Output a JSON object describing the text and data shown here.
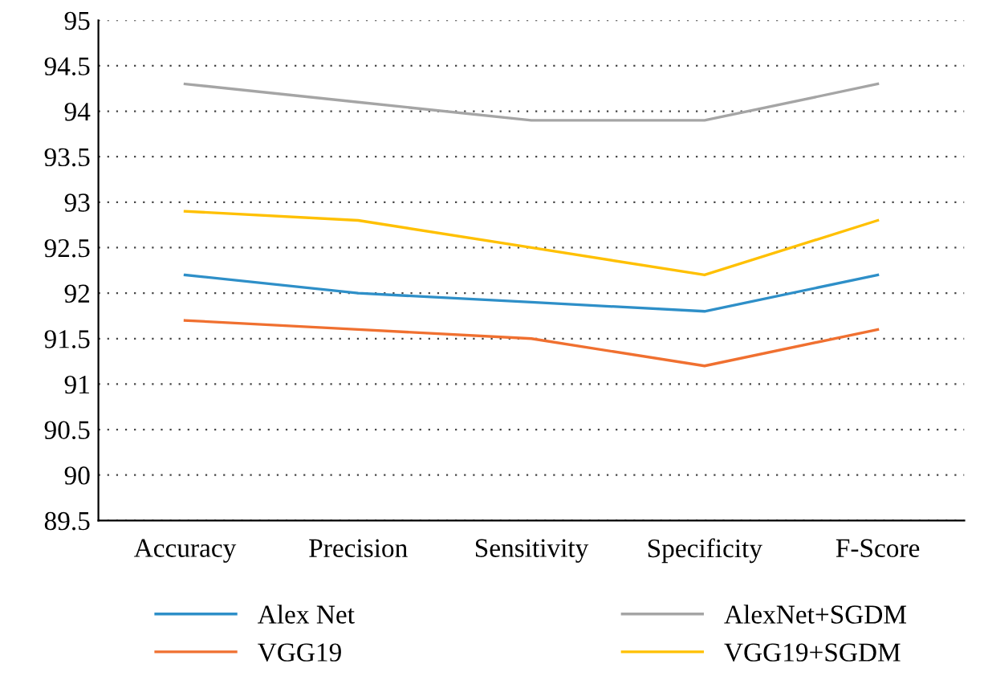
{
  "chart_data": {
    "type": "line",
    "categories": [
      "Accuracy",
      "Precision",
      "Sensitivity",
      "Specificity",
      "F-Score"
    ],
    "series": [
      {
        "name": "Alex Net",
        "color": "#2e8fc8",
        "values": [
          92.2,
          92.0,
          91.9,
          91.8,
          92.2
        ]
      },
      {
        "name": "VGG19",
        "color": "#f07030",
        "values": [
          91.7,
          91.6,
          91.5,
          91.2,
          91.6
        ]
      },
      {
        "name": "AlexNet+SGDM",
        "color": "#a5a5a5",
        "values": [
          94.3,
          94.1,
          93.9,
          93.9,
          94.3
        ]
      },
      {
        "name": "VGG19+SGDM",
        "color": "#ffc000",
        "values": [
          92.9,
          92.8,
          92.5,
          92.2,
          92.8
        ]
      }
    ],
    "ylim": [
      89.5,
      95
    ],
    "yticks": [
      89.5,
      90,
      90.5,
      91,
      91.5,
      92,
      92.5,
      93,
      93.5,
      94,
      94.5,
      95
    ],
    "grid": "y",
    "legend": "bottom",
    "marker": "none",
    "line_style": "solid"
  }
}
